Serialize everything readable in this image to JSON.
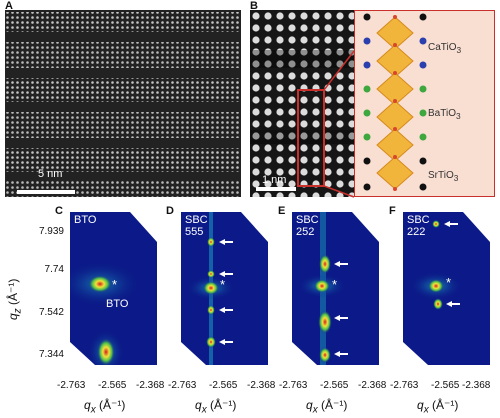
{
  "panels": {
    "A": {
      "letter": "A",
      "scale_bar": "5 nm"
    },
    "B": {
      "letter": "B",
      "scale_bar": "1 nm",
      "layers": [
        {
          "formula": "CaTiO",
          "sub": "3"
        },
        {
          "formula": "BaTiO",
          "sub": "3"
        },
        {
          "formula": "SrTiO",
          "sub": "3"
        }
      ]
    },
    "C": {
      "letter": "C",
      "tags": [
        "BTO"
      ],
      "peak_label": "BTO"
    },
    "D": {
      "letter": "D",
      "tags": [
        "SBC",
        "555"
      ]
    },
    "E": {
      "letter": "E",
      "tags": [
        "SBC",
        "252"
      ]
    },
    "F": {
      "letter": "F",
      "tags": [
        "SBC",
        "222"
      ]
    }
  },
  "marker": "*",
  "y_axis": {
    "label": "q",
    "label_sub": "z",
    "unit": " (Å⁻¹)",
    "ticks": [
      "7.939",
      "7.74",
      "7.542",
      "7.344"
    ]
  },
  "x_axis": {
    "label": "q",
    "label_sub": "x",
    "unit": " (Å⁻¹)",
    "ticks": [
      "-2.763",
      "-2.565",
      "-2.368"
    ]
  },
  "colors": {
    "rsm_background": "#0b1a88",
    "arrow": "#ffffff",
    "red_box": "#c9302c"
  }
}
